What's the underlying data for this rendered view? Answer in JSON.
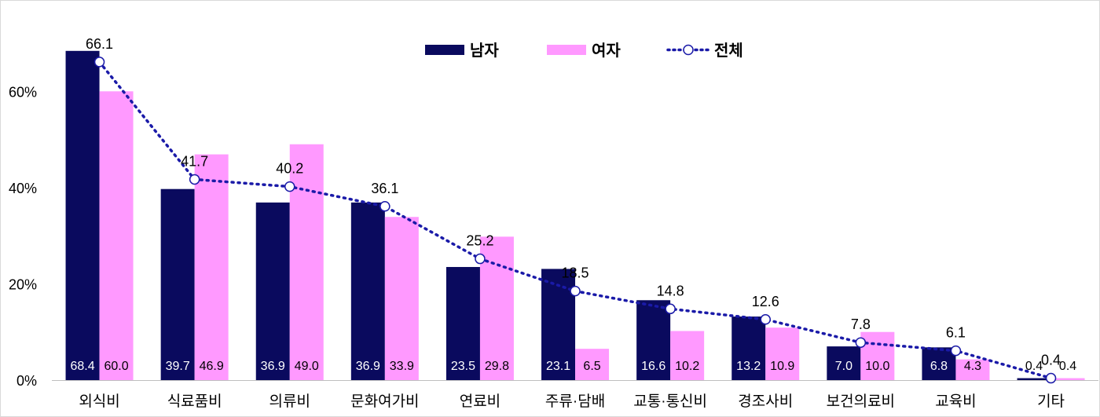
{
  "chart_data": {
    "type": "bar",
    "categories": [
      "외식비",
      "식료품비",
      "의류비",
      "문화여가비",
      "연료비",
      "주류·담배",
      "교통·통신비",
      "경조사비",
      "보건의료비",
      "교육비",
      "기타"
    ],
    "series": [
      {
        "name": "남자",
        "type": "bar",
        "color": "#0a0a5e",
        "label_color": "#ffffff",
        "values": [
          68.4,
          39.7,
          36.9,
          36.9,
          23.5,
          23.1,
          16.6,
          13.2,
          7.0,
          6.8,
          0.4
        ]
      },
      {
        "name": "여자",
        "type": "bar",
        "color": "#ff99ff",
        "label_color": "#000000",
        "values": [
          60.0,
          46.9,
          49.0,
          33.9,
          29.8,
          6.5,
          10.2,
          10.9,
          10.0,
          4.3,
          0.4
        ]
      },
      {
        "name": "전체",
        "type": "line",
        "color": "#1a1aa8",
        "style": "dotted",
        "marker": "open-circle",
        "values": [
          66.1,
          41.7,
          40.2,
          36.1,
          25.2,
          18.5,
          14.8,
          12.6,
          7.8,
          6.1,
          0.4
        ]
      }
    ],
    "y_ticks": [
      "0%",
      "20%",
      "40%",
      "60%"
    ],
    "ylim": [
      0,
      70
    ],
    "grid": false,
    "legend_position": "top-center"
  }
}
